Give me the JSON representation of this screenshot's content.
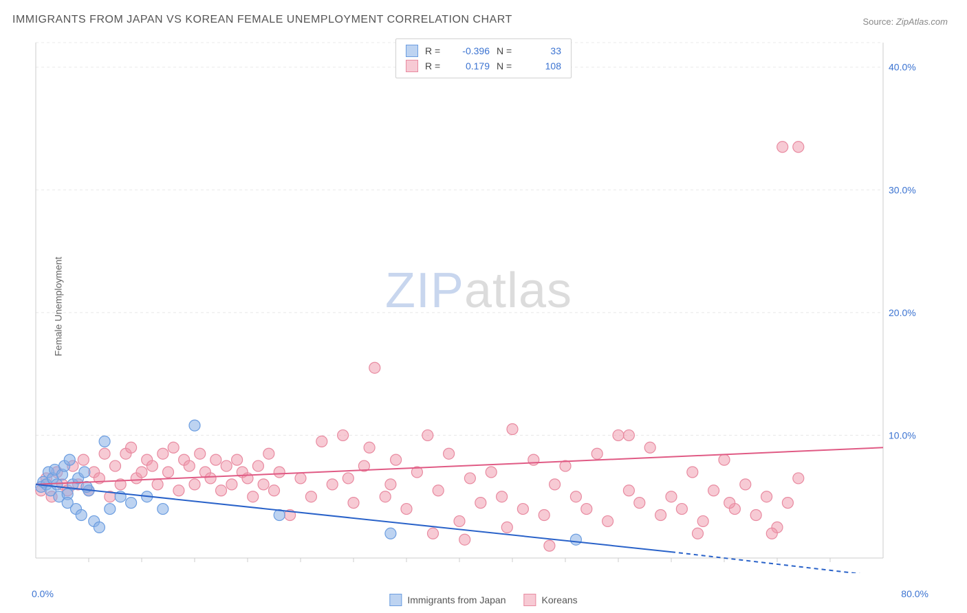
{
  "title": "IMMIGRANTS FROM JAPAN VS KOREAN FEMALE UNEMPLOYMENT CORRELATION CHART",
  "source_prefix": "Source: ",
  "source_name": "ZipAtlas.com",
  "y_axis_label": "Female Unemployment",
  "watermark_zip": "ZIP",
  "watermark_atlas": "atlas",
  "chart": {
    "type": "scatter",
    "background_color": "#ffffff",
    "grid_color": "#e8e8e8",
    "axis_color": "#cccccc",
    "xlim": [
      0,
      80
    ],
    "ylim": [
      0,
      42
    ],
    "y_ticks": [
      10,
      20,
      30,
      40
    ],
    "y_tick_labels": [
      "10.0%",
      "20.0%",
      "30.0%",
      "40.0%"
    ],
    "x_tick_left": "0.0%",
    "x_tick_right": "80.0%",
    "x_minor_ticks": [
      5,
      10,
      15,
      20,
      25,
      30,
      35,
      40,
      45,
      50,
      55,
      60,
      65,
      70,
      75
    ],
    "series": [
      {
        "name": "Immigrants from Japan",
        "marker_color_fill": "rgba(135,175,230,0.55)",
        "marker_color_stroke": "#6b9de0",
        "marker_radius": 8,
        "line_color": "#2962c9",
        "line_width": 2,
        "R_label": "R =",
        "R_value": "-0.396",
        "N_label": "N =",
        "N_value": "33",
        "regression": {
          "x1": 0,
          "y1": 6.0,
          "x2": 60,
          "y2": 0.5,
          "dash_from_x": 60,
          "dash_to_x": 80,
          "dash_to_y": -1.5
        },
        "points": [
          [
            0.5,
            5.8
          ],
          [
            0.7,
            6.2
          ],
          [
            1.0,
            6.0
          ],
          [
            1.2,
            7.0
          ],
          [
            1.4,
            5.5
          ],
          [
            1.6,
            6.5
          ],
          [
            1.8,
            7.2
          ],
          [
            2.0,
            6.0
          ],
          [
            2.2,
            5.0
          ],
          [
            2.5,
            6.8
          ],
          [
            2.7,
            7.5
          ],
          [
            3.0,
            5.2
          ],
          [
            3.2,
            8.0
          ],
          [
            3.5,
            6.0
          ],
          [
            3.8,
            4.0
          ],
          [
            4.0,
            6.5
          ],
          [
            4.3,
            3.5
          ],
          [
            4.6,
            7.0
          ],
          [
            5.0,
            5.5
          ],
          [
            5.5,
            3.0
          ],
          [
            6.0,
            2.5
          ],
          [
            6.5,
            9.5
          ],
          [
            7.0,
            4.0
          ],
          [
            8.0,
            5.0
          ],
          [
            9.0,
            4.5
          ],
          [
            10.5,
            5.0
          ],
          [
            12.0,
            4.0
          ],
          [
            15.0,
            10.8
          ],
          [
            23.0,
            3.5
          ],
          [
            33.5,
            2.0
          ],
          [
            51.0,
            1.5
          ],
          [
            3.0,
            4.5
          ],
          [
            4.8,
            5.8
          ]
        ]
      },
      {
        "name": "Koreans",
        "marker_color_fill": "rgba(240,150,170,0.50)",
        "marker_color_stroke": "#e88aa0",
        "marker_radius": 8,
        "line_color": "#e05a84",
        "line_width": 2,
        "R_label": "R =",
        "R_value": "0.179",
        "N_label": "N =",
        "N_value": "108",
        "regression": {
          "x1": 0,
          "y1": 6.0,
          "x2": 80,
          "y2": 9.0
        },
        "points": [
          [
            0.5,
            5.5
          ],
          [
            1.0,
            6.5
          ],
          [
            1.5,
            5.0
          ],
          [
            2.0,
            7.0
          ],
          [
            2.5,
            6.0
          ],
          [
            3.0,
            5.5
          ],
          [
            3.5,
            7.5
          ],
          [
            4.0,
            6.0
          ],
          [
            4.5,
            8.0
          ],
          [
            5.0,
            5.5
          ],
          [
            5.5,
            7.0
          ],
          [
            6.0,
            6.5
          ],
          [
            6.5,
            8.5
          ],
          [
            7.0,
            5.0
          ],
          [
            7.5,
            7.5
          ],
          [
            8.0,
            6.0
          ],
          [
            8.5,
            8.5
          ],
          [
            9.0,
            9.0
          ],
          [
            9.5,
            6.5
          ],
          [
            10.0,
            7.0
          ],
          [
            10.5,
            8.0
          ],
          [
            11.0,
            7.5
          ],
          [
            11.5,
            6.0
          ],
          [
            12.0,
            8.5
          ],
          [
            12.5,
            7.0
          ],
          [
            13.0,
            9.0
          ],
          [
            13.5,
            5.5
          ],
          [
            14.0,
            8.0
          ],
          [
            14.5,
            7.5
          ],
          [
            15.0,
            6.0
          ],
          [
            15.5,
            8.5
          ],
          [
            16.0,
            7.0
          ],
          [
            16.5,
            6.5
          ],
          [
            17.0,
            8.0
          ],
          [
            17.5,
            5.5
          ],
          [
            18.0,
            7.5
          ],
          [
            18.5,
            6.0
          ],
          [
            19.0,
            8.0
          ],
          [
            19.5,
            7.0
          ],
          [
            20.0,
            6.5
          ],
          [
            20.5,
            5.0
          ],
          [
            21.0,
            7.5
          ],
          [
            21.5,
            6.0
          ],
          [
            22.0,
            8.5
          ],
          [
            22.5,
            5.5
          ],
          [
            23.0,
            7.0
          ],
          [
            24.0,
            3.5
          ],
          [
            25.0,
            6.5
          ],
          [
            26.0,
            5.0
          ],
          [
            27.0,
            9.5
          ],
          [
            28.0,
            6.0
          ],
          [
            29.0,
            10.0
          ],
          [
            30.0,
            4.5
          ],
          [
            31.0,
            7.5
          ],
          [
            32.0,
            15.5
          ],
          [
            33.0,
            5.0
          ],
          [
            34.0,
            8.0
          ],
          [
            35.0,
            4.0
          ],
          [
            36.0,
            7.0
          ],
          [
            37.0,
            10.0
          ],
          [
            38.0,
            5.5
          ],
          [
            39.0,
            8.5
          ],
          [
            40.0,
            3.0
          ],
          [
            41.0,
            6.5
          ],
          [
            42.0,
            4.5
          ],
          [
            43.0,
            7.0
          ],
          [
            44.0,
            5.0
          ],
          [
            45.0,
            10.5
          ],
          [
            46.0,
            4.0
          ],
          [
            47.0,
            8.0
          ],
          [
            48.0,
            3.5
          ],
          [
            49.0,
            6.0
          ],
          [
            50.0,
            7.5
          ],
          [
            51.0,
            5.0
          ],
          [
            52.0,
            4.0
          ],
          [
            53.0,
            8.5
          ],
          [
            54.0,
            3.0
          ],
          [
            55.0,
            10.0
          ],
          [
            56.0,
            5.5
          ],
          [
            57.0,
            4.5
          ],
          [
            58.0,
            9.0
          ],
          [
            59.0,
            3.5
          ],
          [
            60.0,
            5.0
          ],
          [
            61.0,
            4.0
          ],
          [
            62.0,
            7.0
          ],
          [
            63.0,
            3.0
          ],
          [
            64.0,
            5.5
          ],
          [
            65.0,
            8.0
          ],
          [
            66.0,
            4.0
          ],
          [
            67.0,
            6.0
          ],
          [
            68.0,
            3.5
          ],
          [
            69.0,
            5.0
          ],
          [
            70.0,
            2.5
          ],
          [
            71.0,
            4.5
          ],
          [
            72.0,
            6.5
          ],
          [
            29.5,
            6.5
          ],
          [
            31.5,
            9.0
          ],
          [
            33.5,
            6.0
          ],
          [
            40.5,
            1.5
          ],
          [
            48.5,
            1.0
          ],
          [
            56.0,
            10.0
          ],
          [
            62.5,
            2.0
          ],
          [
            65.5,
            4.5
          ],
          [
            69.5,
            2.0
          ],
          [
            70.5,
            33.5
          ],
          [
            72.0,
            33.5
          ],
          [
            44.5,
            2.5
          ],
          [
            37.5,
            2.0
          ]
        ]
      }
    ]
  },
  "legend_bottom": {
    "s1_label": "Immigrants from Japan",
    "s2_label": "Koreans"
  }
}
